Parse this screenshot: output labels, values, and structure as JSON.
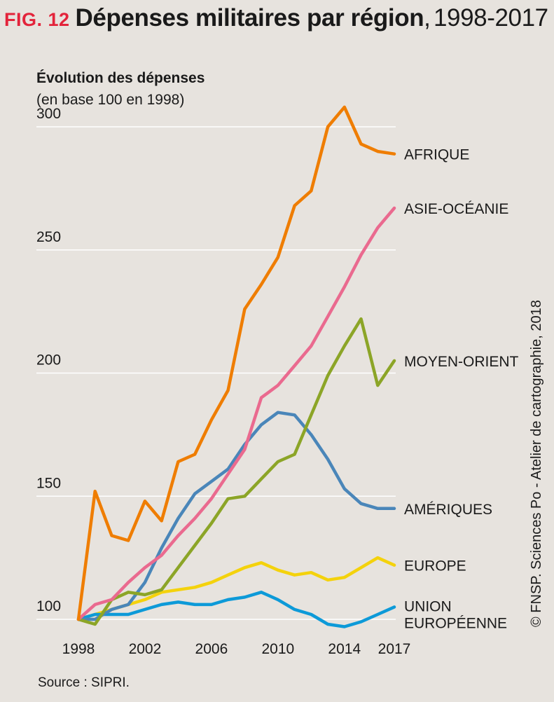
{
  "header": {
    "fig_label": "FIG. 12",
    "title": "Dépenses militaires par région",
    "title_sep": ",",
    "years": "1998-2017"
  },
  "credit": "© FNSP. Sciences Po - Atelier de cartographie, 2018",
  "source": "Source : SIPRI.",
  "chart_data": {
    "type": "line",
    "title": "Dépenses militaires par région, 1998-2017",
    "ylabel": "Évolution des dépenses",
    "ylabel_sub": "(en base 100 en 1998)",
    "xlabel": "",
    "xlim": [
      1998,
      2017
    ],
    "ylim": [
      100,
      310
    ],
    "x": [
      1998,
      1999,
      2000,
      2001,
      2002,
      2003,
      2004,
      2005,
      2006,
      2007,
      2008,
      2009,
      2010,
      2011,
      2012,
      2013,
      2014,
      2015,
      2016,
      2017
    ],
    "x_ticks": [
      "1998",
      "2002",
      "2006",
      "2010",
      "2014",
      "2017"
    ],
    "y_ticks": [
      "100",
      "150",
      "200",
      "250",
      "300"
    ],
    "grid": true,
    "series": [
      {
        "name": "AFRIQUE",
        "label": "AFRIQUE",
        "color": "#ef7d00",
        "values": [
          100,
          152,
          134,
          132,
          148,
          140,
          164,
          167,
          181,
          193,
          226,
          236,
          247,
          268,
          274,
          300,
          308,
          293,
          290,
          289
        ]
      },
      {
        "name": "ASIE-OCÉANIE",
        "label": "ASIE-OCÉANIE",
        "color": "#ea6a8f",
        "values": [
          100,
          106,
          108,
          115,
          121,
          126,
          134,
          141,
          149,
          159,
          169,
          190,
          195,
          203,
          211,
          223,
          235,
          248,
          259,
          267
        ]
      },
      {
        "name": "MOYEN-ORIENT",
        "label": "MOYEN-ORIENT",
        "color": "#8ca527",
        "values": [
          100,
          98,
          108,
          111,
          110,
          112,
          121,
          130,
          139,
          149,
          150,
          157,
          164,
          167,
          183,
          199,
          211,
          222,
          195,
          205
        ]
      },
      {
        "name": "AMÉRIQUES",
        "label": "AMÉRIQUES",
        "color": "#4a86b9",
        "values": [
          100,
          100,
          104,
          106,
          115,
          129,
          141,
          151,
          156,
          161,
          171,
          179,
          184,
          183,
          175,
          165,
          153,
          147,
          145,
          145
        ]
      },
      {
        "name": "EUROPE",
        "label": "EUROPE",
        "color": "#f4d20c",
        "values": [
          100,
          102,
          104,
          106,
          108,
          111,
          112,
          113,
          115,
          118,
          121,
          123,
          120,
          118,
          119,
          116,
          117,
          121,
          125,
          122
        ]
      },
      {
        "name": "UNION EUROPÉENNE",
        "label": "UNION EUROPÉENNE",
        "label_lines": [
          "UNION",
          "EUROPÉENNE"
        ],
        "color": "#0d9ad8",
        "values": [
          100,
          102,
          102,
          102,
          104,
          106,
          107,
          106,
          106,
          108,
          109,
          111,
          108,
          104,
          102,
          98,
          97,
          99,
          102,
          105
        ]
      }
    ]
  }
}
